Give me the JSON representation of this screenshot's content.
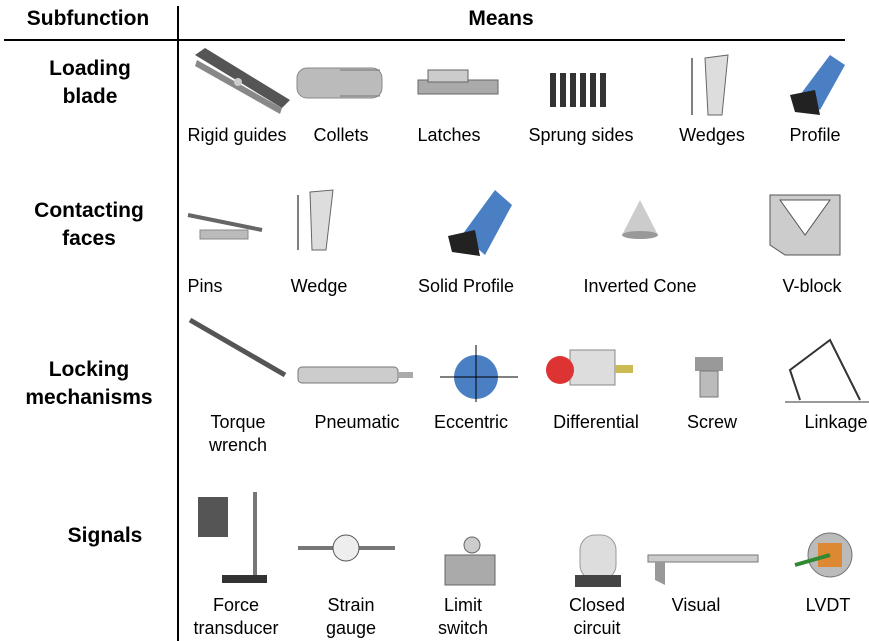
{
  "header": {
    "subfunction": "Subfunction",
    "means": "Means"
  },
  "rows": [
    {
      "label": "Loading blade",
      "means": [
        "Rigid guides",
        "Collets",
        "Latches",
        "Sprung sides",
        "Wedges",
        "Profile"
      ]
    },
    {
      "label": "Contacting faces",
      "means": [
        "Pins",
        "Wedge",
        "Solid Profile",
        "Inverted Cone",
        "V-block"
      ]
    },
    {
      "label": "Locking mechanisms",
      "means": [
        "Torque wrench",
        "Pneumatic",
        "Eccentric",
        "Differential",
        "Screw",
        "Linkage"
      ]
    },
    {
      "label": "Signals",
      "means": [
        "Force transducer",
        "Strain gauge",
        "Limit switch",
        "Closed circuit",
        "Visual",
        "LVDT"
      ]
    }
  ]
}
